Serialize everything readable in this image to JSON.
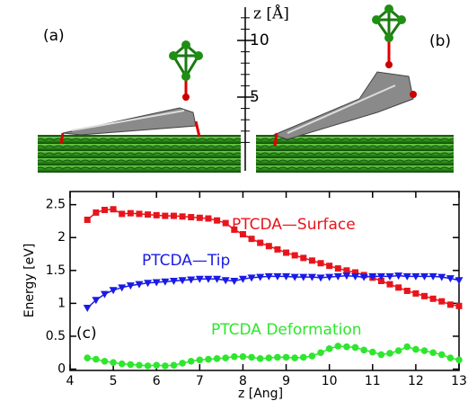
{
  "panel_labels": [
    "(a)",
    "(b)"
  ],
  "scale": {
    "label": "z [Å]",
    "ticks": [
      5,
      10
    ]
  },
  "chart_data": {
    "type": "line",
    "panel_label": "(c)",
    "x_label": "z [Ang]",
    "y_label": "Energy [eV]",
    "xlim": [
      4,
      13
    ],
    "ylim": [
      -0.02,
      2.7
    ],
    "xticks": [
      4,
      5,
      6,
      7,
      8,
      9,
      10,
      11,
      12,
      13
    ],
    "yticks": [
      0,
      0.5,
      1,
      1.5,
      2,
      2.5
    ],
    "x": [
      4.4,
      4.6,
      4.8,
      5.0,
      5.2,
      5.4,
      5.6,
      5.8,
      6.0,
      6.2,
      6.4,
      6.6,
      6.8,
      7.0,
      7.2,
      7.4,
      7.6,
      7.8,
      8.0,
      8.2,
      8.4,
      8.6,
      8.8,
      9.0,
      9.2,
      9.4,
      9.6,
      9.8,
      10.0,
      10.2,
      10.4,
      10.6,
      10.8,
      11.0,
      11.2,
      11.4,
      11.6,
      11.8,
      12.0,
      12.2,
      12.4,
      12.6,
      12.8,
      13.0
    ],
    "series": [
      {
        "name": "PTCDA—Surface",
        "color": "#e8141c",
        "marker": "square",
        "values": [
          2.27,
          2.38,
          2.42,
          2.43,
          2.36,
          2.37,
          2.36,
          2.35,
          2.34,
          2.33,
          2.33,
          2.32,
          2.31,
          2.3,
          2.29,
          2.26,
          2.22,
          2.12,
          2.05,
          1.98,
          1.92,
          1.87,
          1.82,
          1.77,
          1.73,
          1.69,
          1.65,
          1.61,
          1.57,
          1.53,
          1.5,
          1.47,
          1.43,
          1.39,
          1.34,
          1.29,
          1.24,
          1.19,
          1.15,
          1.11,
          1.07,
          1.03,
          0.98,
          0.96
        ]
      },
      {
        "name": "PTCDA—Tip",
        "color": "#1a1ae6",
        "marker": "triangle-down",
        "values": [
          0.93,
          1.05,
          1.14,
          1.2,
          1.24,
          1.27,
          1.29,
          1.31,
          1.32,
          1.33,
          1.34,
          1.35,
          1.36,
          1.37,
          1.37,
          1.37,
          1.35,
          1.34,
          1.37,
          1.39,
          1.4,
          1.41,
          1.41,
          1.41,
          1.4,
          1.4,
          1.4,
          1.39,
          1.4,
          1.41,
          1.42,
          1.41,
          1.4,
          1.41,
          1.41,
          1.41,
          1.42,
          1.41,
          1.41,
          1.41,
          1.41,
          1.4,
          1.38,
          1.35
        ]
      },
      {
        "name": "PTCDA Deformation",
        "color": "#2ee62e",
        "marker": "circle",
        "values": [
          0.17,
          0.15,
          0.12,
          0.1,
          0.08,
          0.07,
          0.06,
          0.05,
          0.06,
          0.05,
          0.06,
          0.09,
          0.12,
          0.14,
          0.15,
          0.16,
          0.17,
          0.19,
          0.19,
          0.18,
          0.16,
          0.17,
          0.18,
          0.18,
          0.17,
          0.18,
          0.2,
          0.25,
          0.31,
          0.35,
          0.34,
          0.33,
          0.29,
          0.26,
          0.22,
          0.24,
          0.28,
          0.34,
          0.3,
          0.28,
          0.25,
          0.22,
          0.17,
          0.14
        ]
      }
    ]
  }
}
